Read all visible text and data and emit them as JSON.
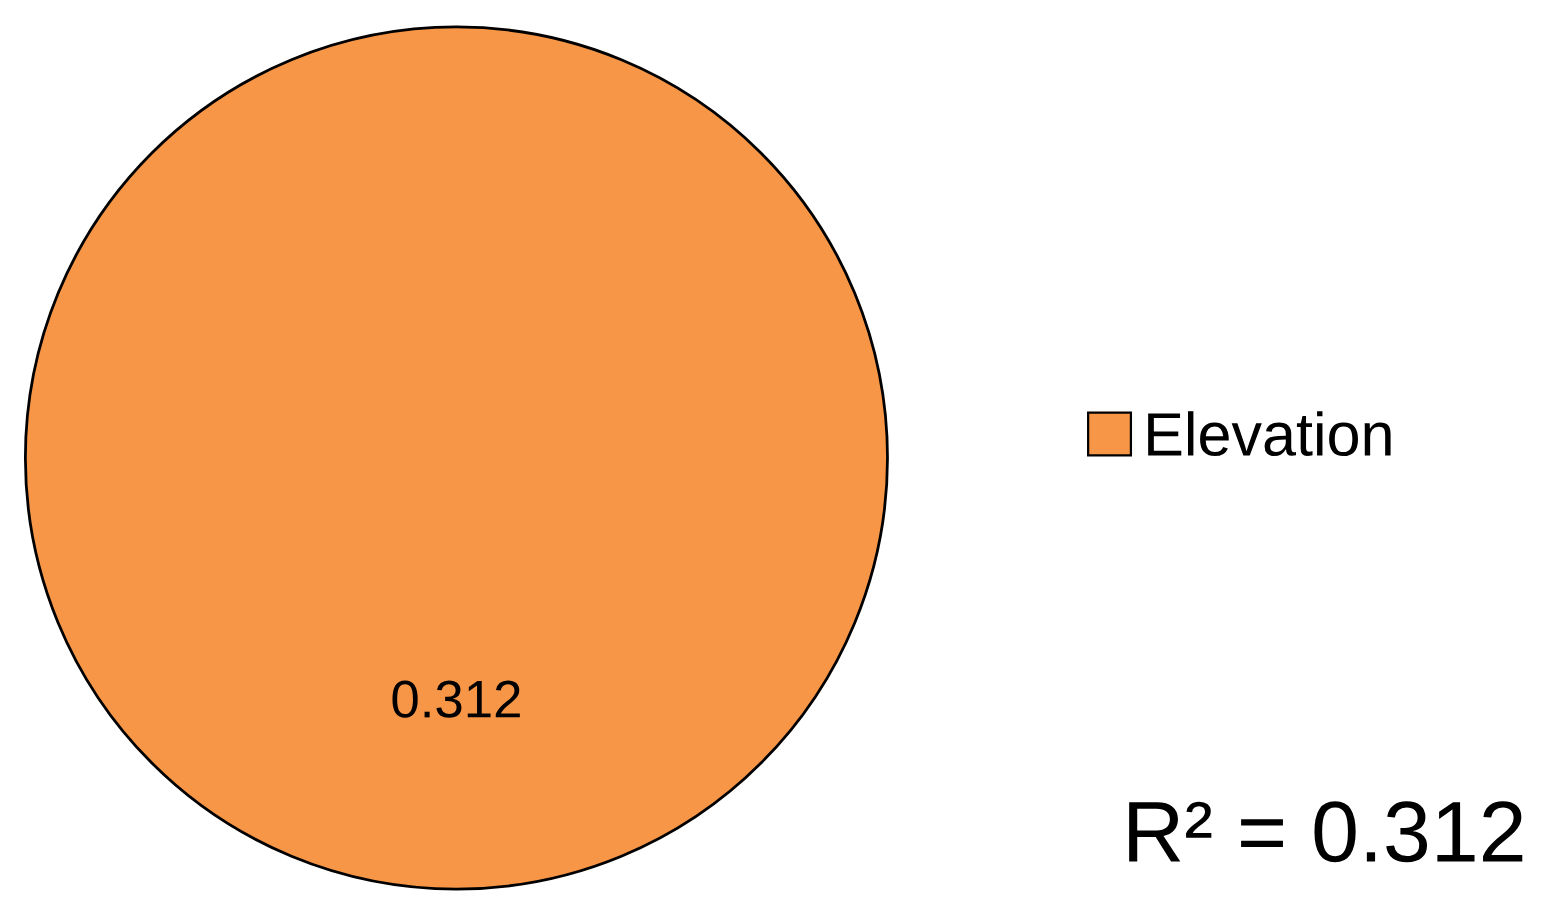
{
  "chart_data": {
    "type": "pie",
    "categories": [
      "Elevation"
    ],
    "values": [
      0.312
    ],
    "colors": [
      "#f79646"
    ],
    "data_labels": true,
    "legend": "right",
    "annotations": [
      "R² = 0.312"
    ]
  }
}
